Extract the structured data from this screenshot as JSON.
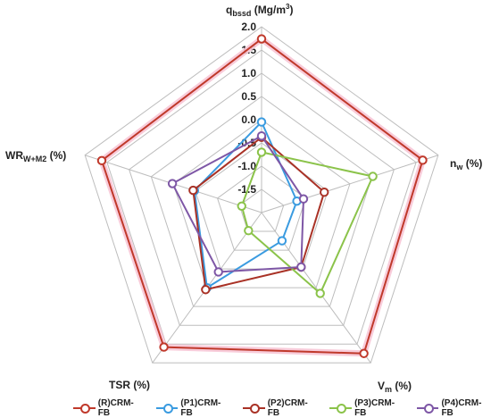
{
  "chart_data": {
    "type": "radar",
    "title": "",
    "axes": [
      {
        "id": "q",
        "label_main": "q",
        "label_sub": "bssd",
        "label_rest": " (Mg/m",
        "label_sup": "3",
        "label_end": ")"
      },
      {
        "id": "nw",
        "label_main": "n",
        "label_sub": "w",
        "label_rest": " (%)",
        "label_sup": "",
        "label_end": ""
      },
      {
        "id": "vm",
        "label_main": "V",
        "label_sub": "m",
        "label_rest": " (%)",
        "label_sup": "",
        "label_end": ""
      },
      {
        "id": "tsr",
        "label_main": "TSR (%)",
        "label_sub": "",
        "label_rest": "",
        "label_sup": "",
        "label_end": ""
      },
      {
        "id": "wr",
        "label_main": "WR",
        "label_sub": "W+M2",
        "label_rest": " (%)",
        "label_sup": "",
        "label_end": ""
      }
    ],
    "rlim": [
      -2.0,
      2.0
    ],
    "ticks": [
      "-1.5",
      "-1.0",
      "-0.5",
      "0.0",
      "0.5",
      "1.0",
      "1.5",
      "2.0"
    ],
    "tick_values": [
      -1.5,
      -1.0,
      -0.5,
      0.0,
      0.5,
      1.0,
      1.5,
      2.0
    ],
    "grid": true,
    "legend_position": "bottom",
    "series": [
      {
        "name": "(R)CRM-FB",
        "color": "#c0392b",
        "fill": "#f7c6d6",
        "values": [
          1.74,
          1.65,
          1.75,
          1.58,
          1.62
        ]
      },
      {
        "name": "(P1)CRM-FB",
        "color": "#3a9be0",
        "fill": "",
        "values": [
          -0.05,
          -1.2,
          -1.25,
          0.0,
          -0.48
        ]
      },
      {
        "name": "(P2)CRM-FB",
        "color": "#a93226",
        "fill": "",
        "values": [
          -0.38,
          -0.58,
          -0.55,
          0.05,
          -0.45
        ]
      },
      {
        "name": "(P3)CRM-FB",
        "color": "#8bc34a",
        "fill": "",
        "values": [
          -0.7,
          0.52,
          0.15,
          -1.52,
          -1.55
        ]
      },
      {
        "name": "(P4)CRM-FB",
        "color": "#7e57a6",
        "fill": "",
        "values": [
          -0.35,
          -1.05,
          -0.55,
          -0.42,
          0.02
        ]
      }
    ]
  }
}
